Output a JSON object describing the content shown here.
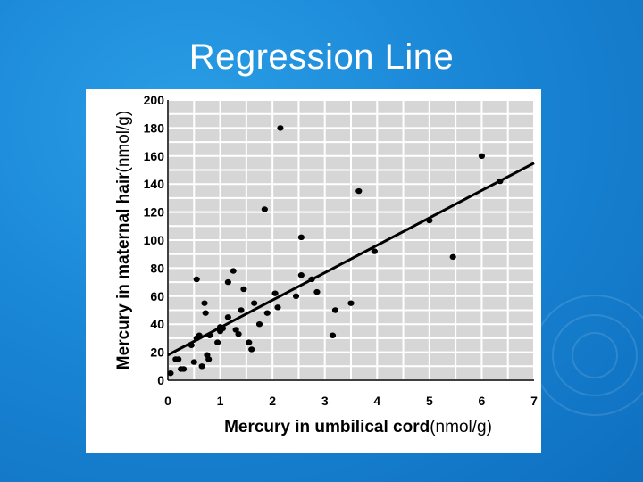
{
  "slide": {
    "title": "Regression Line",
    "background_color": "#1a86d6",
    "title_color": "#ffffff"
  },
  "chart_data": {
    "type": "scatter",
    "title": "",
    "xlabel": "Mercury in umbilical cord",
    "xlabel_unit": "(nmol/g)",
    "ylabel": "Mercury in maternal hair",
    "ylabel_unit": "(nmol/g)",
    "xlim": [
      0,
      7
    ],
    "ylim": [
      0,
      200
    ],
    "x_ticks": [
      "0",
      "1",
      "2",
      "3",
      "4",
      "5",
      "6",
      "7"
    ],
    "y_ticks": [
      "0",
      "20",
      "40",
      "60",
      "80",
      "100",
      "120",
      "140",
      "160",
      "180",
      "200"
    ],
    "grid": true,
    "plot_background": "#d6d6d6",
    "grid_color": "#ffffff",
    "point_color": "#000000",
    "series": [
      {
        "points": [
          [
            0.05,
            5
          ],
          [
            0.15,
            15
          ],
          [
            0.2,
            15
          ],
          [
            0.25,
            8
          ],
          [
            0.3,
            8
          ],
          [
            0.45,
            25
          ],
          [
            0.5,
            13
          ],
          [
            0.55,
            72
          ],
          [
            0.55,
            30
          ],
          [
            0.6,
            32
          ],
          [
            0.65,
            10
          ],
          [
            0.7,
            55
          ],
          [
            0.72,
            48
          ],
          [
            0.75,
            18
          ],
          [
            0.78,
            15
          ],
          [
            0.8,
            32
          ],
          [
            0.95,
            27
          ],
          [
            1.0,
            38
          ],
          [
            1.0,
            35
          ],
          [
            1.05,
            37
          ],
          [
            1.15,
            70
          ],
          [
            1.15,
            45
          ],
          [
            1.25,
            78
          ],
          [
            1.3,
            36
          ],
          [
            1.35,
            33
          ],
          [
            1.4,
            50
          ],
          [
            1.45,
            65
          ],
          [
            1.55,
            27
          ],
          [
            1.6,
            22
          ],
          [
            1.65,
            55
          ],
          [
            1.75,
            40
          ],
          [
            1.85,
            122
          ],
          [
            1.9,
            48
          ],
          [
            2.05,
            62
          ],
          [
            2.1,
            52
          ],
          [
            2.15,
            180
          ],
          [
            2.45,
            60
          ],
          [
            2.55,
            102
          ],
          [
            2.55,
            75
          ],
          [
            2.75,
            72
          ],
          [
            2.85,
            63
          ],
          [
            3.15,
            32
          ],
          [
            3.2,
            50
          ],
          [
            3.5,
            55
          ],
          [
            3.65,
            135
          ],
          [
            3.95,
            92
          ],
          [
            5.0,
            114
          ],
          [
            5.45,
            88
          ],
          [
            6.0,
            160
          ],
          [
            6.35,
            142
          ]
        ]
      }
    ],
    "regression_line": {
      "start": [
        0,
        18
      ],
      "end": [
        7,
        155
      ],
      "color": "#000000"
    }
  }
}
